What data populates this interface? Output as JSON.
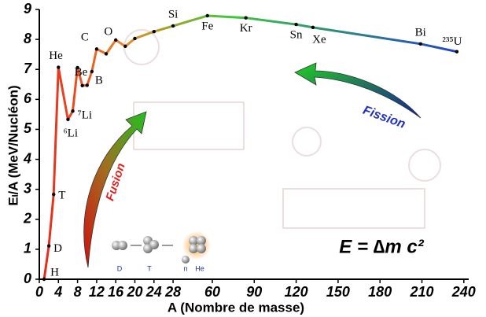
{
  "chart_data": {
    "type": "line",
    "xlabel": "A (Nombre de masse)",
    "ylabel": "Eₗ/A (MeV/Nucléon)",
    "x": [
      1,
      2,
      3,
      4,
      6,
      7,
      8,
      9,
      10,
      11,
      12,
      14,
      16,
      18,
      20,
      24,
      28,
      56,
      84,
      120,
      132,
      209,
      235
    ],
    "values": [
      0,
      1.11,
      2.83,
      7.07,
      5.33,
      5.61,
      7.06,
      6.46,
      6.47,
      6.93,
      7.68,
      7.52,
      7.98,
      7.77,
      8.03,
      8.26,
      8.45,
      8.79,
      8.72,
      8.5,
      8.4,
      7.85,
      7.59
    ],
    "point_labels": [
      "H",
      "D",
      "T",
      "He",
      "⁶Li",
      "⁷Li",
      null,
      "Be",
      null,
      "B",
      "C",
      null,
      "O",
      null,
      null,
      null,
      "Si",
      "Fe",
      "Kr",
      "Sn",
      "Xe",
      "Bi",
      "²³⁵U"
    ],
    "gradient": [
      "#e8231a",
      "#e88a2a",
      "#3ec83e",
      "#1f3fd0"
    ],
    "xlim": [
      0,
      240
    ],
    "xticks": [
      0,
      4,
      8,
      12,
      16,
      20,
      24,
      28,
      60,
      90,
      120,
      150,
      180,
      210,
      240
    ],
    "ylim": [
      0,
      9
    ],
    "yticks": [
      0,
      1,
      2,
      3,
      4,
      5,
      6,
      7,
      8,
      9
    ],
    "annotations": {
      "fusion": "Fusion",
      "fission": "Fission",
      "formula": "E = ∆m c²",
      "particles": [
        "D",
        "T",
        "n",
        "He"
      ]
    }
  }
}
